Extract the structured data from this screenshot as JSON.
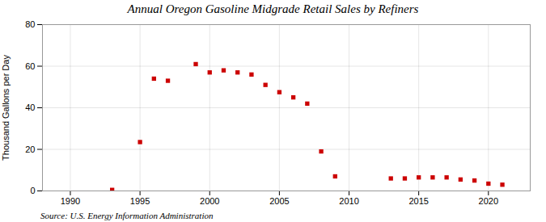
{
  "chart_data": {
    "type": "scatter",
    "title": "Annual Oregon Gasoline Midgrade Retail Sales by Refiners",
    "ylabel": "Thousand Gallons per Day",
    "source": "Source: U.S. Energy Information Administration",
    "x": [
      1993,
      1995,
      1996,
      1997,
      1999,
      2000,
      2001,
      2002,
      2003,
      2004,
      2005,
      2006,
      2007,
      2008,
      2009,
      2013,
      2014,
      2015,
      2016,
      2017,
      2018,
      2019,
      2020,
      2021
    ],
    "values": [
      0.5,
      23.5,
      54,
      53,
      61,
      57,
      58,
      57,
      56,
      51,
      47.5,
      45,
      42,
      19,
      7,
      6,
      6,
      6.5,
      6.5,
      6.5,
      5.5,
      5,
      3.5,
      3
    ],
    "color": "#cc0000",
    "marker": "square",
    "xlim": [
      1988,
      2023
    ],
    "xticks": [
      1990,
      1995,
      2000,
      2005,
      2010,
      2015,
      2020
    ],
    "ylim": [
      0,
      80
    ],
    "yticks": [
      0,
      20,
      40,
      60,
      80
    ],
    "grid": true
  }
}
